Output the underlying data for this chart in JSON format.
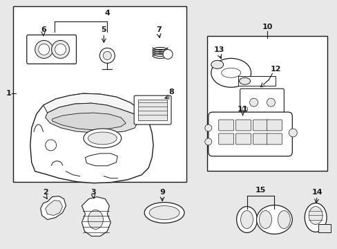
{
  "background_color": "#e8e8e8",
  "line_color": "#1a1a1a",
  "fig_width": 4.89,
  "fig_height": 3.6,
  "dpi": 100
}
